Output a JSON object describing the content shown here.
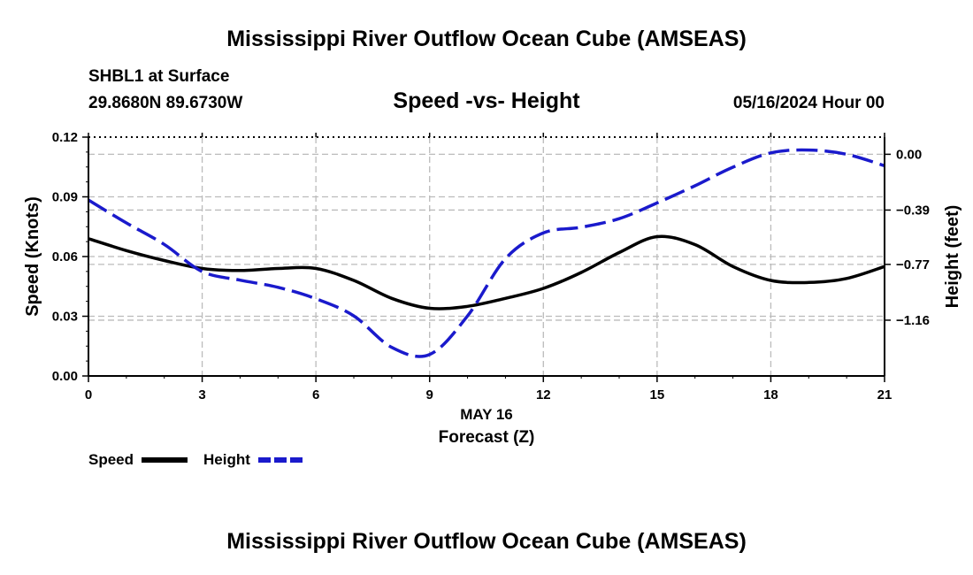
{
  "chart_data": {
    "type": "line",
    "title": "Mississippi River Outflow Ocean Cube (AMSEAS)",
    "subtitle": "Speed -vs- Height",
    "station": "SHBL1 at Surface",
    "location": "29.8680N  89.6730W",
    "date": "05/16/2024 Hour 00",
    "xlabel_date": "MAY 16",
    "xlabel": "Forecast (Z)",
    "ylabel_left": "Speed (Knots)",
    "ylabel_right": "Height (feet)",
    "xlim": [
      0,
      21
    ],
    "ylim_left": [
      0,
      0.12
    ],
    "ylim_right": [
      -1.55,
      0.12
    ],
    "x_ticks": [
      "0",
      "3",
      "6",
      "9",
      "12",
      "15",
      "18",
      "21"
    ],
    "y_left_ticks": [
      "0.00",
      "0.03",
      "0.06",
      "0.09",
      "0.12"
    ],
    "y_right_ticks": [
      "0.00",
      "−0.39",
      "−0.77",
      "−1.16"
    ],
    "y_right_tick_values": [
      0.0,
      -0.39,
      -0.77,
      -1.16
    ],
    "legend_position": "bottom-left",
    "grid": true,
    "series": [
      {
        "name": "Speed",
        "axis": "left",
        "color": "#000000",
        "dash": "solid",
        "x": [
          0,
          1,
          2,
          3,
          4,
          5,
          6,
          7,
          8,
          9,
          10,
          11,
          12,
          13,
          14,
          15,
          16,
          17,
          18,
          19,
          20,
          21
        ],
        "values": [
          0.069,
          0.063,
          0.058,
          0.054,
          0.053,
          0.054,
          0.054,
          0.048,
          0.039,
          0.034,
          0.035,
          0.039,
          0.044,
          0.052,
          0.062,
          0.07,
          0.066,
          0.055,
          0.048,
          0.047,
          0.049,
          0.055
        ]
      },
      {
        "name": "Height",
        "axis": "right",
        "color": "#1a1acc",
        "dash": "dashed",
        "x": [
          0,
          1,
          2,
          3,
          4,
          5,
          6,
          7,
          8,
          9,
          10,
          11,
          12,
          13,
          14,
          15,
          16,
          17,
          18,
          19,
          20,
          21
        ],
        "values": [
          -0.32,
          -0.48,
          -0.63,
          -0.82,
          -0.88,
          -0.93,
          -1.01,
          -1.13,
          -1.35,
          -1.4,
          -1.13,
          -0.73,
          -0.55,
          -0.51,
          -0.45,
          -0.34,
          -0.22,
          -0.09,
          0.01,
          0.03,
          0.0,
          -0.08
        ]
      }
    ]
  }
}
